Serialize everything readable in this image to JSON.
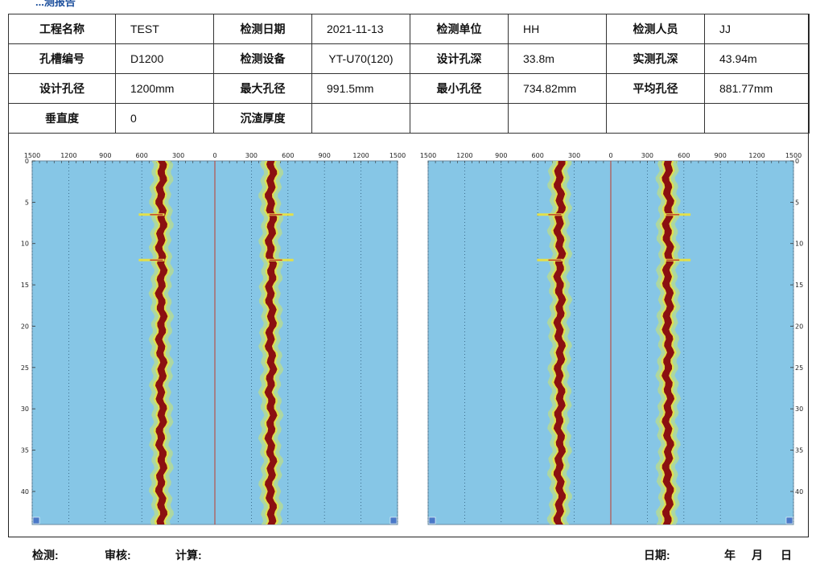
{
  "report_title_fragment": "...测报告",
  "info_table": {
    "rows": [
      [
        {
          "k": "工程名称",
          "v": "TEST"
        },
        {
          "k": "检测日期",
          "v": "2021-11-13"
        },
        {
          "k": "检测单位",
          "v": "HH"
        },
        {
          "k": "检测人员",
          "v": "JJ"
        }
      ],
      [
        {
          "k": "孔槽编号",
          "v": "D1200"
        },
        {
          "k": "检测设备",
          "v": "YT-U70(120)"
        },
        {
          "k": "设计孔深",
          "v": "33.8m"
        },
        {
          "k": "实测孔深",
          "v": "43.94m"
        }
      ],
      [
        {
          "k": "设计孔径",
          "v": "1200mm"
        },
        {
          "k": "最大孔径",
          "v": "991.5mm"
        },
        {
          "k": "最小孔径",
          "v": "734.82mm"
        },
        {
          "k": "平均孔径",
          "v": "881.77mm"
        }
      ],
      [
        {
          "k": "垂直度",
          "v": "0"
        },
        {
          "k": "沉渣厚度",
          "v": ""
        },
        {
          "k": "",
          "v": ""
        },
        {
          "k": "",
          "v": ""
        }
      ]
    ]
  },
  "chart_data": [
    {
      "type": "heatmap",
      "title": "",
      "xlabel": "",
      "ylabel": "",
      "x_tick_labels": [
        "1500",
        "1200",
        "900",
        "600",
        "300",
        "0",
        "300",
        "600",
        "900",
        "1200",
        "1500"
      ],
      "y_tick_labels": [
        "0",
        "5",
        "10",
        "15",
        "20",
        "25",
        "30",
        "35",
        "40"
      ],
      "xlim": [
        -1500,
        1500
      ],
      "ylim": [
        0,
        44
      ],
      "y_axis_side": "left",
      "wall_left_mm": -440,
      "wall_right_mm": 460,
      "anomaly_depths_m": [
        6.5,
        12
      ],
      "colors": {
        "background": "#86c6e6",
        "wall": "#8b1010",
        "halo": "#e3e04a",
        "center_line": "#c0392b"
      },
      "corner_icons": [
        "a-icon",
        "x-icon"
      ]
    },
    {
      "type": "heatmap",
      "title": "",
      "xlabel": "",
      "ylabel": "",
      "x_tick_labels": [
        "1500",
        "1200",
        "900",
        "600",
        "300",
        "0",
        "300",
        "600",
        "900",
        "1200",
        "1500"
      ],
      "y_tick_labels": [
        "0",
        "5",
        "10",
        "15",
        "20",
        "25",
        "30",
        "35",
        "40"
      ],
      "xlim": [
        -1500,
        1500
      ],
      "ylim": [
        0,
        44
      ],
      "y_axis_side": "right",
      "wall_left_mm": -420,
      "wall_right_mm": 470,
      "anomaly_depths_m": [
        6.5,
        12
      ],
      "colors": {
        "background": "#86c6e6",
        "wall": "#8b1010",
        "halo": "#e3e04a",
        "center_line": "#c0392b"
      },
      "corner_icons": [
        "y-icon",
        "y-icon"
      ]
    }
  ],
  "footer": {
    "inspector": "检测:",
    "reviewer": "审核:",
    "calculator": "计算:",
    "date": "日期:",
    "year": "年",
    "month": "月",
    "day": "日"
  }
}
